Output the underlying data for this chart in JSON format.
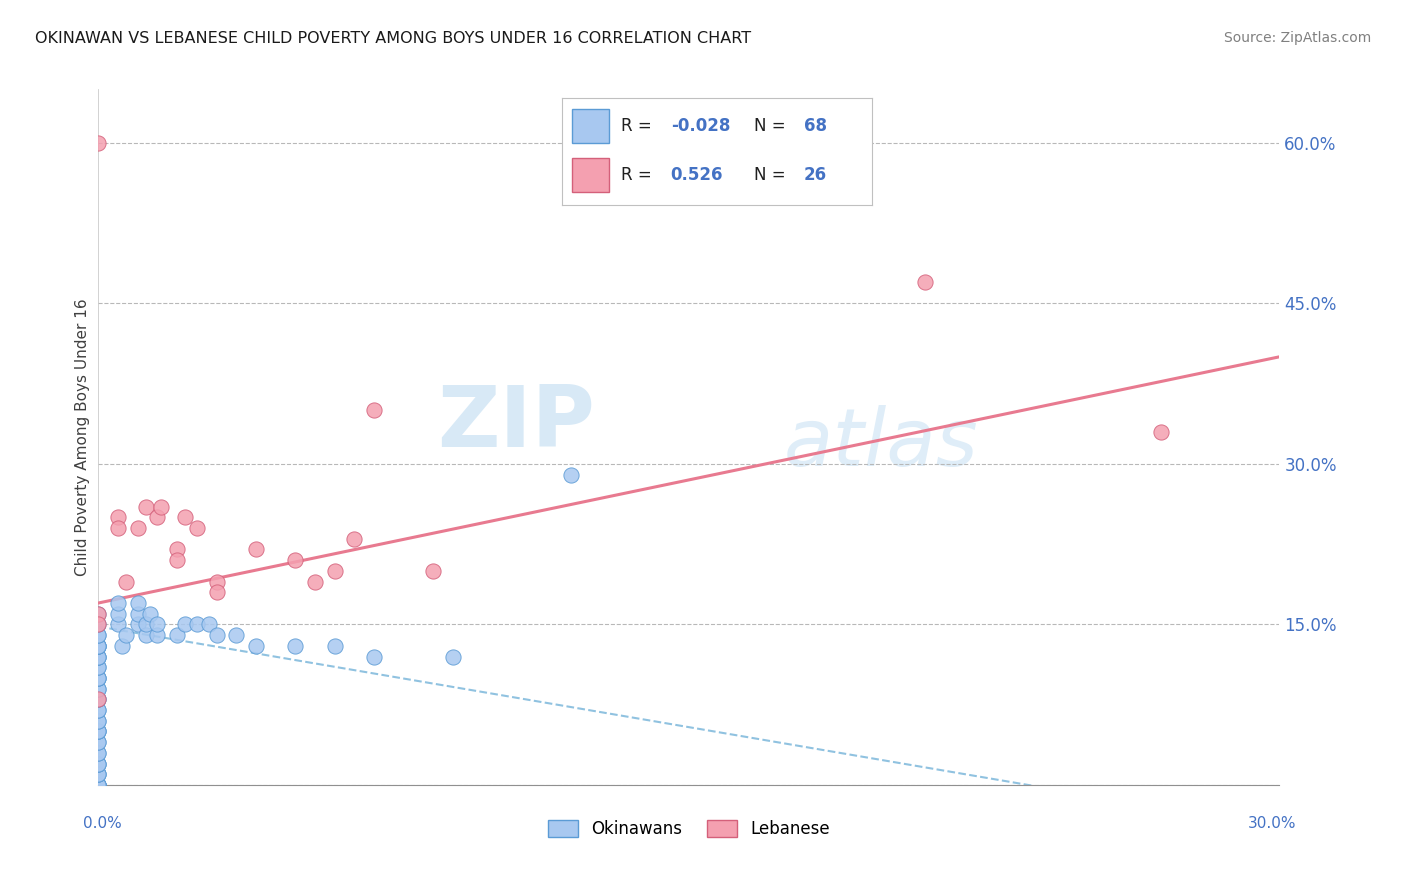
{
  "title": "OKINAWAN VS LEBANESE CHILD POVERTY AMONG BOYS UNDER 16 CORRELATION CHART",
  "source": "Source: ZipAtlas.com",
  "ylabel": "Child Poverty Among Boys Under 16",
  "xlim": [
    0.0,
    0.3
  ],
  "ylim": [
    0.0,
    0.65
  ],
  "yticks": [
    0.0,
    0.15,
    0.3,
    0.45,
    0.6
  ],
  "ytick_labels": [
    "",
    "15.0%",
    "30.0%",
    "45.0%",
    "60.0%"
  ],
  "okinawan_R": -0.028,
  "okinawan_N": 68,
  "lebanese_R": 0.526,
  "lebanese_N": 26,
  "okinawan_color": "#a8c8f0",
  "okinawan_edge_color": "#5b9bd5",
  "lebanese_color": "#f4a0b0",
  "lebanese_edge_color": "#d4607a",
  "okinawan_line_color": "#6baed6",
  "lebanese_line_color": "#e87a90",
  "watermark": "ZIPatlas",
  "okinawan_points_x": [
    0.0,
    0.0,
    0.0,
    0.0,
    0.0,
    0.0,
    0.0,
    0.0,
    0.0,
    0.0,
    0.0,
    0.0,
    0.0,
    0.0,
    0.0,
    0.0,
    0.0,
    0.0,
    0.0,
    0.0,
    0.0,
    0.0,
    0.0,
    0.0,
    0.0,
    0.0,
    0.0,
    0.0,
    0.0,
    0.0,
    0.0,
    0.0,
    0.0,
    0.0,
    0.0,
    0.0,
    0.0,
    0.0,
    0.0,
    0.0,
    0.0,
    0.0,
    0.0,
    0.005,
    0.005,
    0.005,
    0.006,
    0.007,
    0.01,
    0.01,
    0.01,
    0.012,
    0.012,
    0.013,
    0.015,
    0.015,
    0.02,
    0.022,
    0.025,
    0.028,
    0.03,
    0.035,
    0.04,
    0.05,
    0.06,
    0.07,
    0.09,
    0.12
  ],
  "okinawan_points_y": [
    0.0,
    0.0,
    0.0,
    0.0,
    0.0,
    0.0,
    0.01,
    0.01,
    0.01,
    0.02,
    0.02,
    0.02,
    0.03,
    0.03,
    0.04,
    0.04,
    0.05,
    0.05,
    0.05,
    0.06,
    0.06,
    0.07,
    0.07,
    0.08,
    0.08,
    0.09,
    0.09,
    0.1,
    0.1,
    0.1,
    0.11,
    0.11,
    0.12,
    0.12,
    0.12,
    0.13,
    0.13,
    0.13,
    0.13,
    0.14,
    0.14,
    0.15,
    0.16,
    0.15,
    0.16,
    0.17,
    0.13,
    0.14,
    0.15,
    0.16,
    0.17,
    0.14,
    0.15,
    0.16,
    0.14,
    0.15,
    0.14,
    0.15,
    0.15,
    0.15,
    0.14,
    0.14,
    0.13,
    0.13,
    0.13,
    0.12,
    0.12,
    0.29
  ],
  "lebanese_points_x": [
    0.0,
    0.0,
    0.0,
    0.0,
    0.005,
    0.005,
    0.007,
    0.01,
    0.012,
    0.015,
    0.016,
    0.02,
    0.02,
    0.022,
    0.025,
    0.03,
    0.03,
    0.04,
    0.05,
    0.055,
    0.06,
    0.065,
    0.07,
    0.085,
    0.21,
    0.27
  ],
  "lebanese_points_y": [
    0.6,
    0.16,
    0.15,
    0.08,
    0.25,
    0.24,
    0.19,
    0.24,
    0.26,
    0.25,
    0.26,
    0.22,
    0.21,
    0.25,
    0.24,
    0.19,
    0.18,
    0.22,
    0.21,
    0.19,
    0.2,
    0.23,
    0.35,
    0.2,
    0.47,
    0.33
  ]
}
